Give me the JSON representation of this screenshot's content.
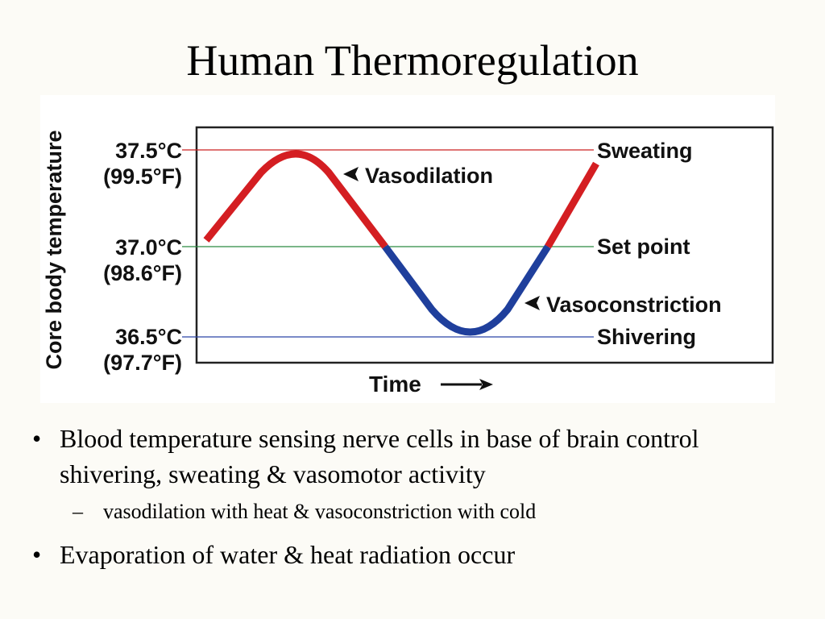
{
  "slide": {
    "title": "Human Thermoregulation"
  },
  "diagram": {
    "y_axis_label": "Core body temperature",
    "x_axis_label": "Time",
    "levels": [
      {
        "celsius": "37.5°C",
        "fahrenheit": "(99.5°F)",
        "label": "Sweating",
        "color": "#cc2020"
      },
      {
        "celsius": "37.0°C",
        "fahrenheit": "(98.6°F)",
        "label": "Set point",
        "color": "#2a8a40"
      },
      {
        "celsius": "36.5°C",
        "fahrenheit": "(97.7°F)",
        "label": "Shivering",
        "color": "#2b44a6"
      }
    ],
    "annotations": {
      "vasodilation": "Vasodilation",
      "vasoconstriction": "Vasoconstriction"
    },
    "colors": {
      "warm_curve": "#d41e22",
      "cool_curve": "#1f3f9c",
      "frame": "#222222"
    }
  },
  "bullets": [
    {
      "text": "Blood temperature sensing nerve cells in base of brain control shivering, sweating & vasomotor activity"
    },
    {
      "text": "vasodilation with heat & vasoconstriction with cold",
      "level": 2
    },
    {
      "text": "Evaporation of water & heat radiation occur"
    }
  ]
}
